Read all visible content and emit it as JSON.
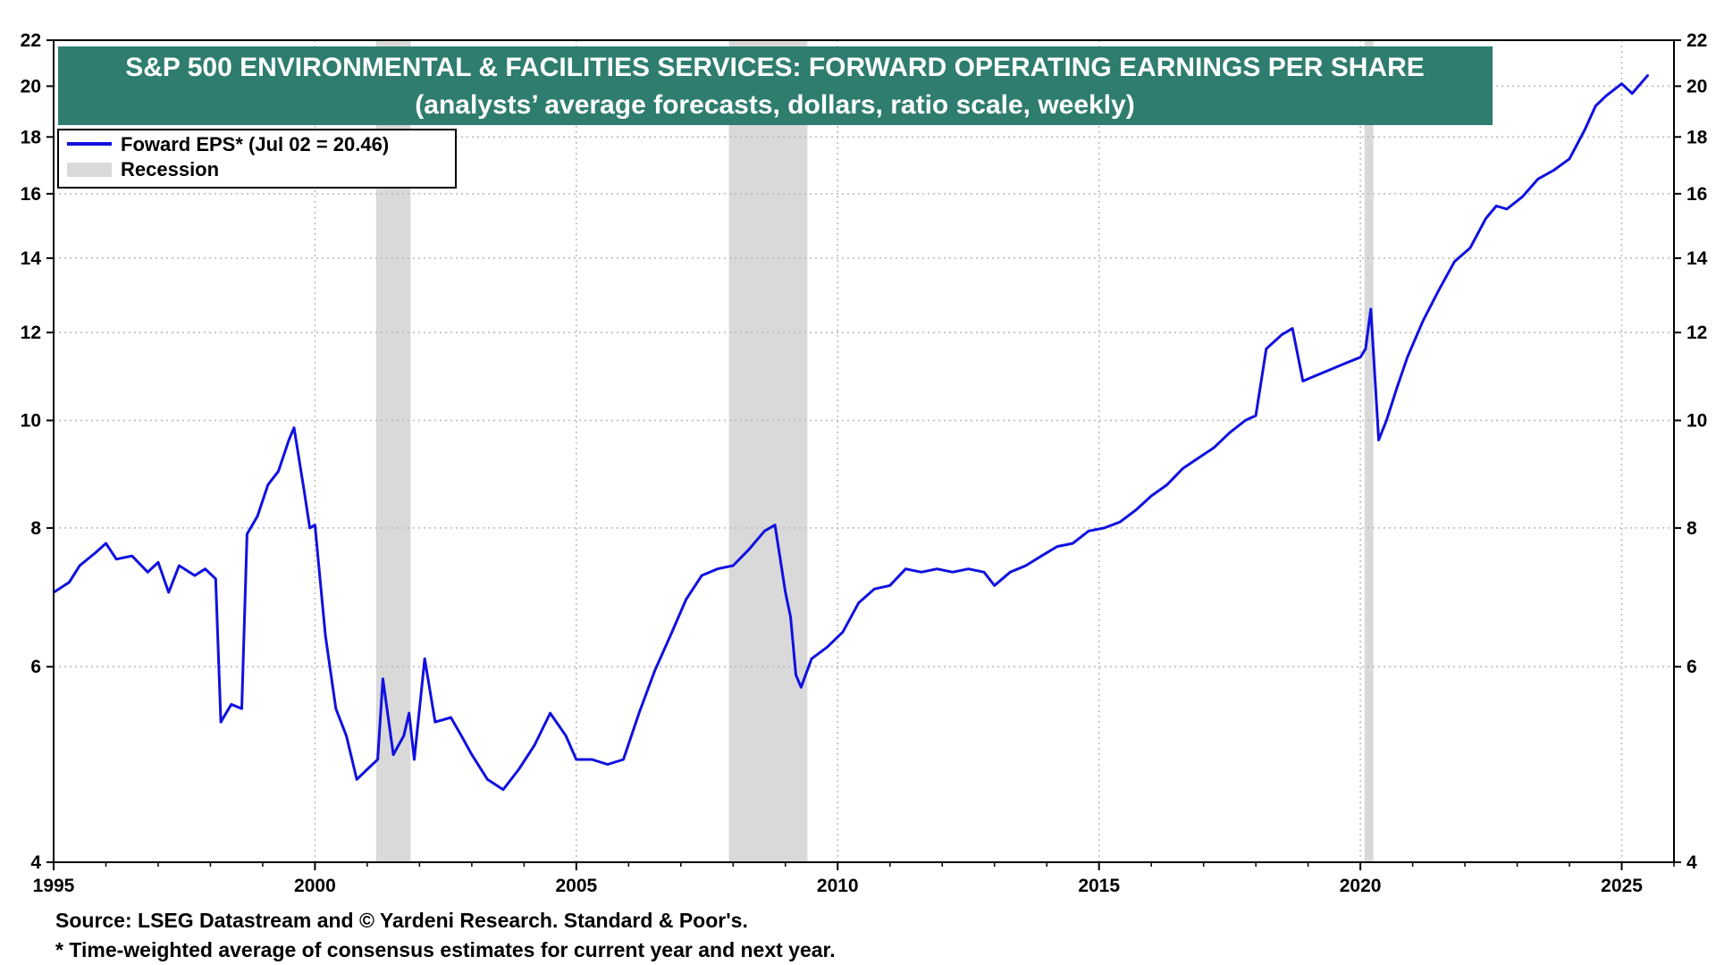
{
  "chart_data": {
    "type": "line",
    "title": "S&P 500 ENVIRONMENTAL & FACILITIES SERVICES: FORWARD OPERATING EARNINGS PER SHARE",
    "subtitle": "(analysts’ average forecasts, dollars, ratio scale, weekly)",
    "y_scale": "log",
    "ylim": [
      4,
      22
    ],
    "xlim": [
      1995.0,
      2026.0
    ],
    "x_ticks": [
      "1995",
      "2000",
      "2005",
      "2010",
      "2015",
      "2020",
      "2025"
    ],
    "x_tick_values": [
      1995,
      2000,
      2005,
      2010,
      2015,
      2020,
      2025
    ],
    "y_ticks": [
      "4",
      "6",
      "8",
      "10",
      "12",
      "14",
      "16",
      "18",
      "20",
      "22"
    ],
    "y_tick_values": [
      4,
      6,
      8,
      10,
      12,
      14,
      16,
      18,
      20,
      22
    ],
    "grid": true,
    "legend_position": "top-left",
    "legend": [
      {
        "label": "Foward EPS* (Jul 02 = 20.46)",
        "kind": "line",
        "color": "#1010e0"
      },
      {
        "label": "Recession",
        "kind": "band",
        "color": "#d9d9d9"
      }
    ],
    "recessions": [
      [
        2001.17,
        2001.83
      ],
      [
        2007.92,
        2009.42
      ],
      [
        2020.08,
        2020.25
      ]
    ],
    "series": [
      {
        "name": "Foward EPS*",
        "color": "#1010e0",
        "x": [
          1995.0,
          1995.3,
          1995.5,
          1995.8,
          1996.0,
          1996.2,
          1996.5,
          1996.8,
          1997.0,
          1997.2,
          1997.4,
          1997.7,
          1997.9,
          1998.1,
          1998.2,
          1998.4,
          1998.6,
          1998.7,
          1998.9,
          1999.1,
          1999.3,
          1999.5,
          1999.6,
          1999.8,
          1999.9,
          2000.0,
          2000.2,
          2000.4,
          2000.6,
          2000.8,
          2001.0,
          2001.2,
          2001.3,
          2001.5,
          2001.7,
          2001.8,
          2001.9,
          2002.1,
          2002.3,
          2002.6,
          2002.8,
          2003.0,
          2003.3,
          2003.6,
          2003.9,
          2004.2,
          2004.5,
          2004.8,
          2005.0,
          2005.3,
          2005.6,
          2005.9,
          2006.2,
          2006.5,
          2006.8,
          2007.1,
          2007.4,
          2007.7,
          2008.0,
          2008.3,
          2008.6,
          2008.8,
          2009.0,
          2009.1,
          2009.2,
          2009.3,
          2009.5,
          2009.8,
          2010.1,
          2010.4,
          2010.7,
          2011.0,
          2011.3,
          2011.6,
          2011.9,
          2012.2,
          2012.5,
          2012.8,
          2013.0,
          2013.3,
          2013.6,
          2013.9,
          2014.2,
          2014.5,
          2014.8,
          2015.1,
          2015.4,
          2015.7,
          2016.0,
          2016.3,
          2016.6,
          2016.9,
          2017.2,
          2017.5,
          2017.8,
          2018.0,
          2018.2,
          2018.5,
          2018.7,
          2018.9,
          2019.1,
          2019.4,
          2019.7,
          2020.0,
          2020.1,
          2020.2,
          2020.35,
          2020.5,
          2020.7,
          2020.9,
          2021.2,
          2021.5,
          2021.8,
          2022.1,
          2022.4,
          2022.6,
          2022.8,
          2023.1,
          2023.4,
          2023.7,
          2024.0,
          2024.3,
          2024.5,
          2024.7,
          2025.0,
          2025.2,
          2025.5
        ],
        "values": [
          7.0,
          7.15,
          7.4,
          7.6,
          7.75,
          7.5,
          7.55,
          7.3,
          7.45,
          7.0,
          7.4,
          7.25,
          7.35,
          7.2,
          5.35,
          5.55,
          5.5,
          7.9,
          8.2,
          8.75,
          9.0,
          9.6,
          9.85,
          8.6,
          8.0,
          8.05,
          6.4,
          5.5,
          5.2,
          4.75,
          4.85,
          4.95,
          5.85,
          5.0,
          5.2,
          5.45,
          4.95,
          6.1,
          5.35,
          5.4,
          5.2,
          5.0,
          4.75,
          4.65,
          4.85,
          5.1,
          5.45,
          5.2,
          4.95,
          4.95,
          4.9,
          4.95,
          5.45,
          5.95,
          6.4,
          6.9,
          7.25,
          7.35,
          7.4,
          7.65,
          7.95,
          8.05,
          7.0,
          6.65,
          5.9,
          5.75,
          6.1,
          6.25,
          6.45,
          6.85,
          7.05,
          7.1,
          7.35,
          7.3,
          7.35,
          7.3,
          7.35,
          7.3,
          7.1,
          7.3,
          7.4,
          7.55,
          7.7,
          7.75,
          7.95,
          8.0,
          8.1,
          8.3,
          8.55,
          8.75,
          9.05,
          9.25,
          9.45,
          9.75,
          10.0,
          10.1,
          11.6,
          11.95,
          12.1,
          10.85,
          10.95,
          11.1,
          11.25,
          11.4,
          11.6,
          12.6,
          9.6,
          10.0,
          10.7,
          11.4,
          12.3,
          13.1,
          13.9,
          14.3,
          15.2,
          15.6,
          15.5,
          15.9,
          16.5,
          16.8,
          17.2,
          18.3,
          19.2,
          19.6,
          20.1,
          19.7,
          20.46
        ]
      }
    ],
    "source": "Source: LSEG Datastream and © Yardeni Research. Standard & Poor's.",
    "footnote": "* Time-weighted average of consensus estimates for current year and next year."
  }
}
